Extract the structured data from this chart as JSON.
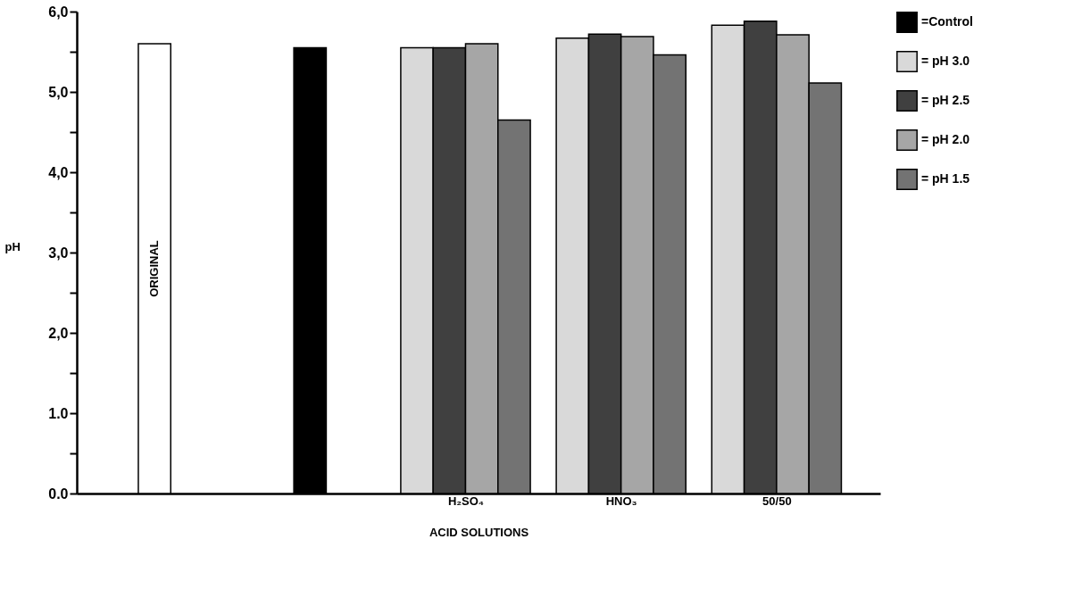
{
  "chart_data": {
    "type": "bar",
    "xlabel": "ACID SOLUTIONS",
    "ylabel": "pH",
    "categories": [
      null,
      null,
      "H₂SO₄",
      "HNO₃",
      "50/50"
    ],
    "series": [
      {
        "color": "#ffffff",
        "values": [
          5.6,
          null,
          null,
          null,
          null
        ]
      },
      {
        "name": "=Control",
        "color": "#000000",
        "values": [
          null,
          5.55,
          null,
          null,
          null
        ]
      },
      {
        "name": "= pH 3.0",
        "color": "#d9d9d9",
        "values": [
          null,
          null,
          5.55,
          5.67,
          5.83
        ]
      },
      {
        "name": "= pH 2.5",
        "color": "#404040",
        "values": [
          null,
          null,
          5.55,
          5.72,
          5.88
        ]
      },
      {
        "name": "= pH 2.0",
        "color": "#a6a6a6",
        "values": [
          null,
          null,
          5.6,
          5.69,
          5.71
        ]
      },
      {
        "name": "= pH 1.5",
        "color": "#737373",
        "values": [
          null,
          null,
          4.65,
          5.46,
          5.11
        ]
      }
    ],
    "ylim": [
      0,
      6
    ],
    "yticks": [
      {
        "value": 0,
        "label": "0.0"
      },
      {
        "value": 0.5,
        "label": null
      },
      {
        "value": 1,
        "label": "1.0"
      },
      {
        "value": 1.5,
        "label": null
      },
      {
        "value": 2,
        "label": "2,0"
      },
      {
        "value": 2.5,
        "label": null
      },
      {
        "value": 3,
        "label": "3,0"
      },
      {
        "value": 3.5,
        "label": null
      },
      {
        "value": 4,
        "label": "4,0"
      },
      {
        "value": 4.5,
        "label": null
      },
      {
        "value": 5,
        "label": "5,0"
      },
      {
        "value": 5.5,
        "label": null
      },
      {
        "value": 6,
        "label": "6,0"
      }
    ],
    "annotations": [
      "ORIGINAL"
    ],
    "grid": false,
    "legend": "top right"
  }
}
